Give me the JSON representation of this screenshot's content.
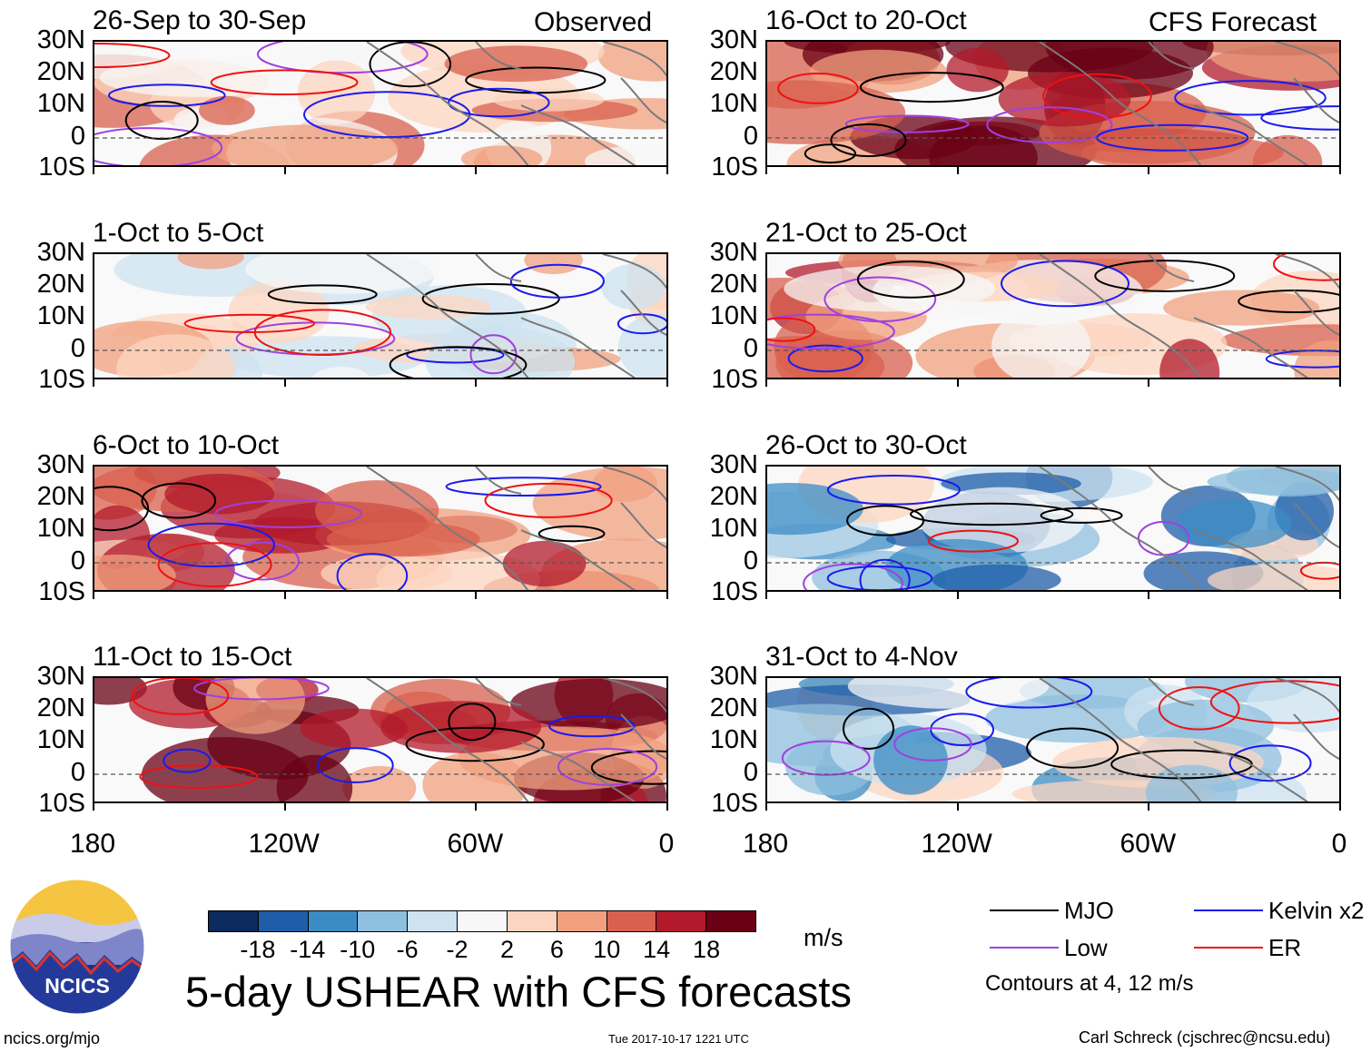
{
  "labels": {
    "observed": "Observed",
    "forecast": "CFS Forecast",
    "lat": [
      "30N",
      "20N",
      "10N",
      "0",
      "10S"
    ],
    "lon": [
      "180",
      "120W",
      "60W",
      "0"
    ]
  },
  "panels": [
    {
      "title": "26-Sep to 30-Sep",
      "mood": "mixed"
    },
    {
      "title": "1-Oct to 5-Oct",
      "mood": "mixed2"
    },
    {
      "title": "6-Oct to 10-Oct",
      "mood": "warm"
    },
    {
      "title": "11-Oct to 15-Oct",
      "mood": "hot"
    },
    {
      "title": "16-Oct to 20-Oct",
      "mood": "hotter"
    },
    {
      "title": "21-Oct to 25-Oct",
      "mood": "warmcool"
    },
    {
      "title": "26-Oct to 30-Oct",
      "mood": "cool"
    },
    {
      "title": "31-Oct to 4-Nov",
      "mood": "cooler"
    }
  ],
  "colorbar": {
    "colors": [
      "#0b2a5e",
      "#1f5da8",
      "#3b8cc4",
      "#8fbfde",
      "#cde3f0",
      "#f7f7f7",
      "#fcd5c0",
      "#f0a07f",
      "#d8604e",
      "#b2192b",
      "#6a0014"
    ],
    "ticks": [
      "-18",
      "-14",
      "-10",
      "-6",
      "-2",
      "2",
      "6",
      "10",
      "14",
      "18"
    ],
    "unit": "m/s"
  },
  "legend": {
    "items": [
      {
        "label": "MJO",
        "color": "#000000"
      },
      {
        "label": "Kelvin x2",
        "color": "#1a1aee"
      },
      {
        "label": "Low",
        "color": "#a040e0"
      },
      {
        "label": "ER",
        "color": "#ee1111"
      }
    ],
    "note": "Contours at 4, 12 m/s"
  },
  "footer": {
    "title": "5-day USHEAR with CFS forecasts",
    "logo_text": "NCICS",
    "url": "ncics.org/mjo",
    "timestamp": "Tue 2017-10-17 1221 UTC",
    "author": "Carl Schreck (cjschrec@ncsu.edu)"
  }
}
